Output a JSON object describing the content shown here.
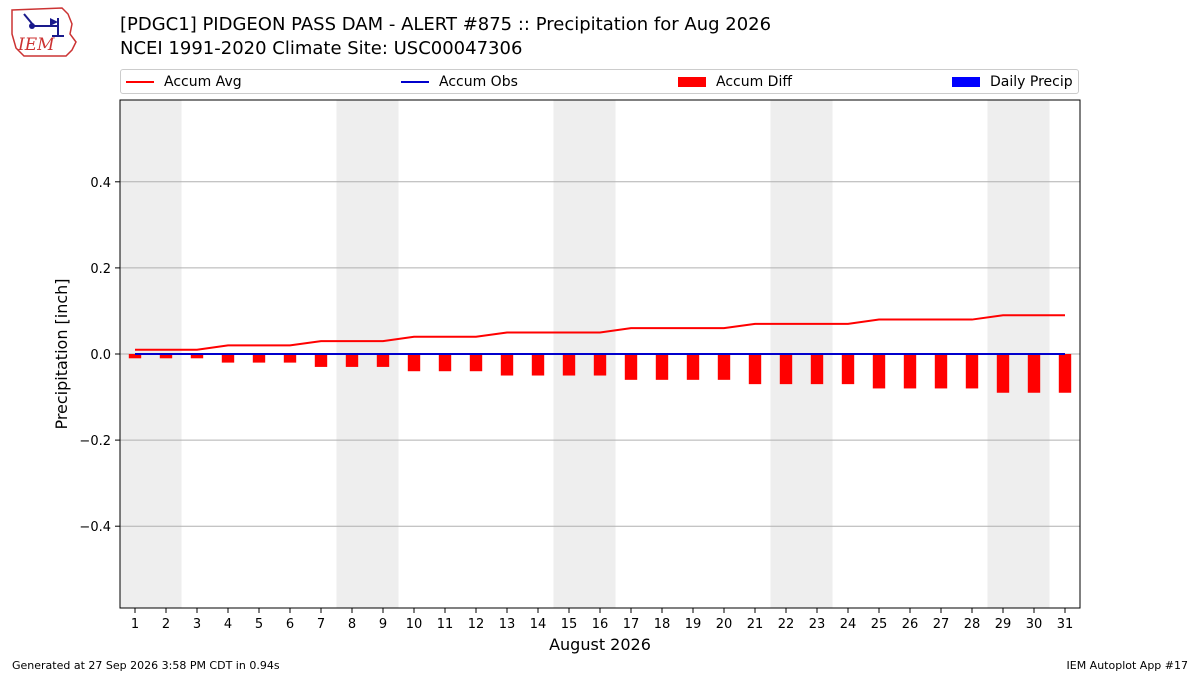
{
  "header": {
    "title_line1": "[PDGC1] PIDGEON PASS DAM - ALERT #875 :: Precipitation for Aug 2026",
    "title_line2": "NCEI 1991-2020 Climate Site: USC00047306",
    "logo_text": "IEM"
  },
  "legend": {
    "items": [
      {
        "label": "Accum Avg",
        "kind": "line",
        "color": "#ff0000"
      },
      {
        "label": "Accum Obs",
        "kind": "line",
        "color": "#0000cc"
      },
      {
        "label": "Accum Diff",
        "kind": "box",
        "color": "#ff0000"
      },
      {
        "label": "Daily Precip",
        "kind": "box",
        "color": "#0000ff"
      }
    ]
  },
  "footer": {
    "left": "Generated at 27 Sep 2026 3:58 PM CDT in 0.94s",
    "right": "IEM Autoplot App #17"
  },
  "chart_data": {
    "type": "bar",
    "xlabel": "August 2026",
    "ylabel": "Precipitation [inch]",
    "ylim": [
      -0.59,
      0.59
    ],
    "yticks": [
      -0.4,
      -0.2,
      0.0,
      0.2,
      0.4
    ],
    "ytick_labels": [
      "−0.4",
      "−0.2",
      "0.0",
      "0.2",
      "0.4"
    ],
    "categories": [
      "1",
      "2",
      "3",
      "4",
      "5",
      "6",
      "7",
      "8",
      "9",
      "10",
      "11",
      "12",
      "13",
      "14",
      "15",
      "16",
      "17",
      "18",
      "19",
      "20",
      "21",
      "22",
      "23",
      "24",
      "25",
      "26",
      "27",
      "28",
      "29",
      "30",
      "31"
    ],
    "weekend_days": [
      1,
      2,
      8,
      9,
      15,
      16,
      22,
      23,
      29,
      30
    ],
    "grid": "horizontal",
    "series": [
      {
        "name": "Accum Avg",
        "kind": "line",
        "color": "#ff0000",
        "values": [
          0.01,
          0.01,
          0.01,
          0.02,
          0.02,
          0.02,
          0.03,
          0.03,
          0.03,
          0.04,
          0.04,
          0.04,
          0.05,
          0.05,
          0.05,
          0.05,
          0.06,
          0.06,
          0.06,
          0.06,
          0.07,
          0.07,
          0.07,
          0.07,
          0.08,
          0.08,
          0.08,
          0.08,
          0.09,
          0.09,
          0.09
        ]
      },
      {
        "name": "Accum Obs",
        "kind": "line",
        "color": "#0000cc",
        "values": [
          0,
          0,
          0,
          0,
          0,
          0,
          0,
          0,
          0,
          0,
          0,
          0,
          0,
          0,
          0,
          0,
          0,
          0,
          0,
          0,
          0,
          0,
          0,
          0,
          0,
          0,
          0,
          0,
          0,
          0,
          0
        ]
      },
      {
        "name": "Accum Diff",
        "kind": "bar",
        "color": "#ff0000",
        "values": [
          -0.01,
          -0.01,
          -0.01,
          -0.02,
          -0.02,
          -0.02,
          -0.03,
          -0.03,
          -0.03,
          -0.04,
          -0.04,
          -0.04,
          -0.05,
          -0.05,
          -0.05,
          -0.05,
          -0.06,
          -0.06,
          -0.06,
          -0.06,
          -0.07,
          -0.07,
          -0.07,
          -0.07,
          -0.08,
          -0.08,
          -0.08,
          -0.08,
          -0.09,
          -0.09,
          -0.09
        ]
      },
      {
        "name": "Daily Precip",
        "kind": "bar",
        "color": "#0000ff",
        "values": [
          0,
          0,
          0,
          0,
          0,
          0,
          0,
          0,
          0,
          0,
          0,
          0,
          0,
          0,
          0,
          0,
          0,
          0,
          0,
          0,
          0,
          0,
          0,
          0,
          0,
          0,
          0,
          0,
          0,
          0,
          0
        ]
      }
    ]
  }
}
